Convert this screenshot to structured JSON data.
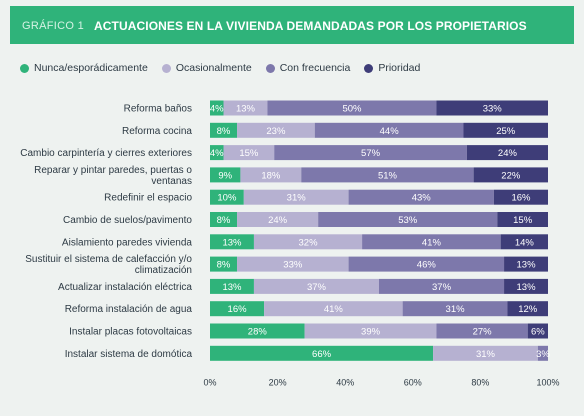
{
  "header": {
    "tag": "GRÁFICO 1",
    "title": "ACTUACIONES EN LA VIVIENDA DEMANDADAS POR LOS PROPIETARIOS"
  },
  "colors": {
    "header_bg": "#2fb37a",
    "background": "#eef2f0",
    "text": "#2d3a44"
  },
  "chart_data": {
    "type": "bar",
    "orientation": "horizontal",
    "stacked": true,
    "title": "ACTUACIONES EN LA VIVIENDA DEMANDADAS POR LOS PROPIETARIOS",
    "legend_position": "top-left",
    "grid": false,
    "xlim": [
      0,
      100
    ],
    "xticks": [
      "0%",
      "20%",
      "40%",
      "60%",
      "80%",
      "100%"
    ],
    "categories": [
      [
        "Reforma baños"
      ],
      [
        "Reforma cocina"
      ],
      [
        "Cambio carpintería y cierres exteriores"
      ],
      [
        "Reparar y pintar paredes, puertas o",
        "ventanas"
      ],
      [
        "Redefinir el espacio"
      ],
      [
        "Cambio de suelos/pavimento"
      ],
      [
        "Aislamiento paredes vivienda"
      ],
      [
        "Sustituir el sistema de calefacción y/o",
        "climatización"
      ],
      [
        "Actualizar instalación eléctrica"
      ],
      [
        "Reforma instalación de agua"
      ],
      [
        "Instalar placas fotovoltaicas"
      ],
      [
        "Instalar sistema de domótica"
      ]
    ],
    "series": [
      {
        "name": "Nunca/esporádicamente",
        "color": "#2fb37a",
        "values": [
          4,
          8,
          4,
          9,
          10,
          8,
          13,
          8,
          13,
          16,
          28,
          66
        ]
      },
      {
        "name": "Ocasionalmente",
        "color": "#b6b1d1",
        "values": [
          13,
          23,
          15,
          18,
          31,
          24,
          32,
          33,
          37,
          41,
          39,
          31
        ]
      },
      {
        "name": "Con frecuencia",
        "color": "#7d78ab",
        "values": [
          50,
          44,
          57,
          51,
          43,
          53,
          41,
          46,
          37,
          31,
          27,
          3
        ]
      },
      {
        "name": "Prioridad",
        "color": "#3e3d78",
        "values": [
          33,
          25,
          24,
          22,
          16,
          15,
          14,
          13,
          13,
          12,
          6,
          0
        ]
      }
    ]
  }
}
